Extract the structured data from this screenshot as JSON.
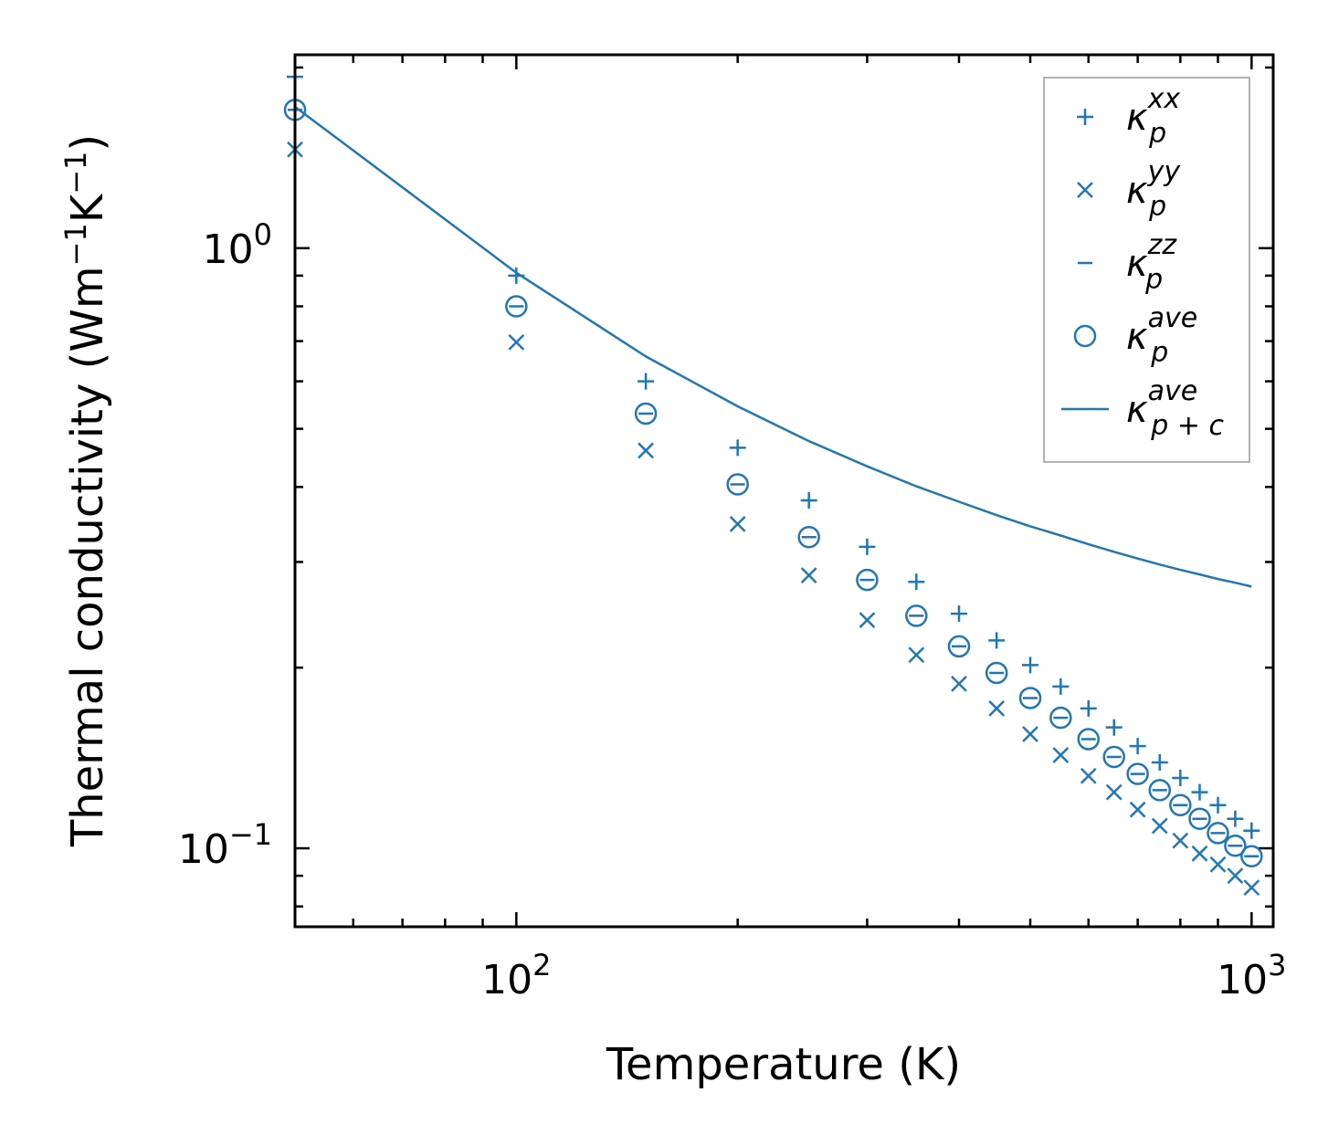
{
  "chart_data": {
    "type": "scatter",
    "xscale": "log",
    "yscale": "log",
    "xlim": [
      50,
      1070
    ],
    "ylim": [
      0.074,
      2.1
    ],
    "xlabel": "Temperature (K)",
    "ylabel_main": "Thermal conductivity (Wm",
    "ylabel_sup1": "−1",
    "ylabel_mid": "K",
    "ylabel_sup2": "−1",
    "ylabel_end": ")",
    "x_major_ticks": [
      {
        "value": 100,
        "base": "10",
        "exp": "2"
      },
      {
        "value": 1000,
        "base": "10",
        "exp": "3"
      }
    ],
    "y_major_ticks": [
      {
        "value": 1.0,
        "base": "10",
        "exp": "0"
      },
      {
        "value": 0.1,
        "base": "10",
        "exp": "−1"
      }
    ],
    "x": [
      50,
      100,
      150,
      200,
      250,
      300,
      350,
      400,
      450,
      500,
      550,
      600,
      650,
      700,
      750,
      800,
      850,
      900,
      950,
      1000
    ],
    "series": [
      {
        "name": "kappa_p_xx",
        "base": "κ",
        "sub": "p",
        "sup": "xx",
        "marker": "plus",
        "values": [
          1.93,
          0.9,
          0.6,
          0.465,
          0.38,
          0.318,
          0.278,
          0.246,
          0.222,
          0.202,
          0.186,
          0.171,
          0.159,
          0.148,
          0.139,
          0.131,
          0.124,
          0.118,
          0.112,
          0.107
        ]
      },
      {
        "name": "kappa_p_yy",
        "base": "κ",
        "sub": "p",
        "sup": "yy",
        "marker": "x",
        "values": [
          1.46,
          0.697,
          0.46,
          0.347,
          0.285,
          0.24,
          0.21,
          0.188,
          0.171,
          0.155,
          0.143,
          0.132,
          0.124,
          0.116,
          0.109,
          0.103,
          0.098,
          0.094,
          0.09,
          0.086
        ]
      },
      {
        "name": "kappa_p_zz",
        "base": "κ",
        "sub": "p",
        "sup": "zz",
        "marker": "hline",
        "values": [
          1.7,
          0.8,
          0.53,
          0.404,
          0.33,
          0.28,
          0.244,
          0.217,
          0.196,
          0.178,
          0.165,
          0.152,
          0.142,
          0.133,
          0.125,
          0.118,
          0.112,
          0.106,
          0.101,
          0.097
        ]
      },
      {
        "name": "kappa_p_ave",
        "base": "κ",
        "sub": "p",
        "sup": "ave",
        "marker": "circle",
        "values": [
          1.7,
          0.8,
          0.53,
          0.404,
          0.33,
          0.28,
          0.244,
          0.217,
          0.196,
          0.178,
          0.165,
          0.152,
          0.142,
          0.133,
          0.125,
          0.118,
          0.112,
          0.106,
          0.101,
          0.097
        ]
      },
      {
        "name": "kappa_pc_ave",
        "base": "κ",
        "sub": "p + c",
        "sup": "ave",
        "marker": "line",
        "values": [
          1.72,
          0.91,
          0.66,
          0.545,
          0.477,
          0.433,
          0.401,
          0.378,
          0.359,
          0.344,
          0.332,
          0.321,
          0.312,
          0.304,
          0.297,
          0.291,
          0.286,
          0.281,
          0.277,
          0.273
        ]
      }
    ],
    "legend_position": "upper right",
    "colors": {
      "series": "#1f77b4",
      "axis": "#000000",
      "legend_border": "#999999"
    }
  }
}
